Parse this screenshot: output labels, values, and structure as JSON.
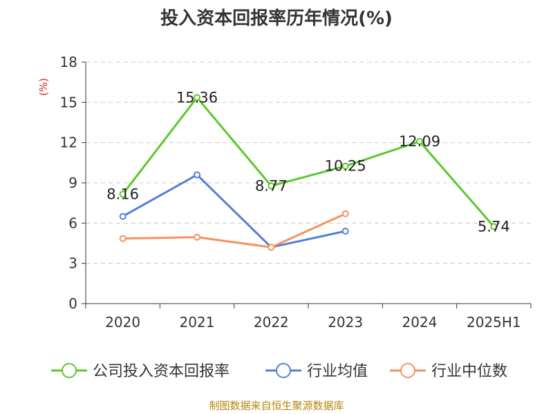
{
  "chart_data": {
    "type": "line",
    "title": "投入资本回报率历年情况(%)",
    "ylabel": "(%)",
    "xlabel": "",
    "categories": [
      "2020",
      "2021",
      "2022",
      "2023",
      "2024",
      "2025H1"
    ],
    "ylim": [
      0,
      18
    ],
    "yticks": [
      0,
      3,
      6,
      9,
      12,
      15,
      18
    ],
    "grid": true,
    "legend_position": "bottom",
    "series": [
      {
        "name": "公司投入资本回报率",
        "color": "#5cc72a",
        "values": [
          8.16,
          15.36,
          8.77,
          10.25,
          12.09,
          5.74
        ],
        "labels": [
          "8.16",
          "15.36",
          "8.77",
          "10.25",
          "12.09",
          "5.74"
        ]
      },
      {
        "name": "行业均值",
        "color": "#4f7fdc",
        "values": [
          6.5,
          9.6,
          4.2,
          5.4,
          null,
          null
        ]
      },
      {
        "name": "行业中位数",
        "color": "#f5915e",
        "values": [
          4.85,
          4.95,
          4.2,
          6.7,
          null,
          null
        ]
      }
    ]
  },
  "source": "制图数据来自恒生聚源数据库"
}
